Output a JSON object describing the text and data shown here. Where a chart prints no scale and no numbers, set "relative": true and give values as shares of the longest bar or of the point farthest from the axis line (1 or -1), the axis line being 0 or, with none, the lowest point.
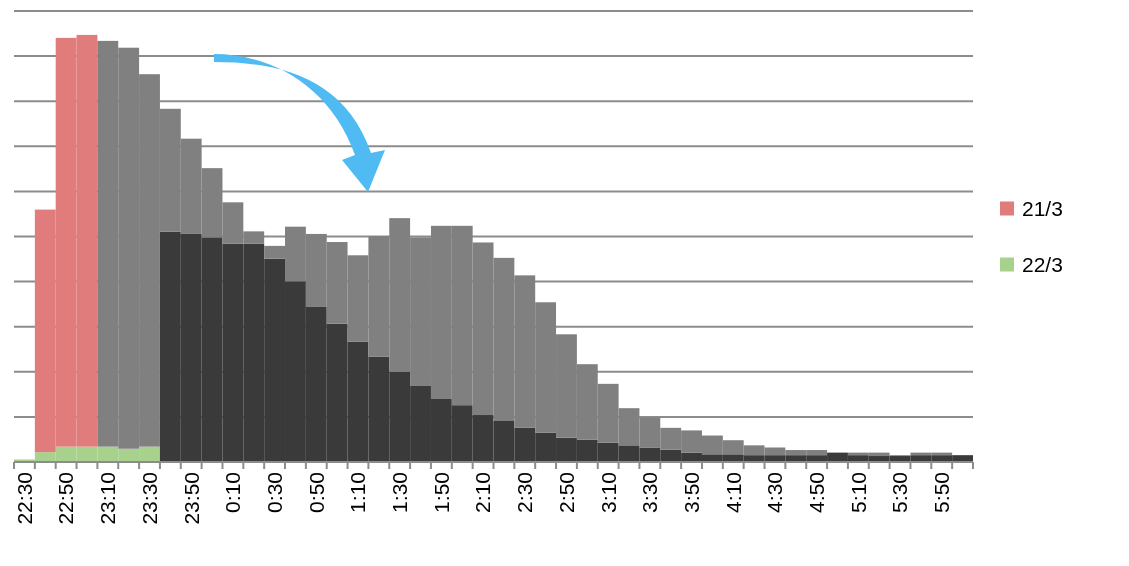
{
  "chart_data": {
    "type": "bar",
    "relative": true,
    "stacked": true,
    "categories": [
      "22:30",
      null,
      "22:50",
      null,
      "23:10",
      null,
      "23:30",
      null,
      "23:50",
      null,
      "0:10",
      null,
      "0:30",
      null,
      "0:50",
      null,
      "1:10",
      null,
      "1:30",
      null,
      "1:50",
      null,
      "2:10",
      null,
      "2:30",
      null,
      "2:50",
      null,
      "3:10",
      null,
      "3:30",
      null,
      "3:50",
      null,
      "4:10",
      null,
      "4:30",
      null,
      "4:50",
      null,
      "5:10",
      null,
      "5:30",
      null,
      "5:50",
      null
    ],
    "series": [
      {
        "name": "22/3",
        "color": "#a9d18e",
        "values": [
          0.006,
          0.023,
          0.036,
          0.036,
          0.036,
          0.031,
          0.036,
          null,
          null,
          null,
          null,
          null,
          null,
          null,
          null,
          null,
          null,
          null,
          null,
          null,
          null,
          null,
          null,
          null,
          null,
          null,
          null,
          null,
          null,
          null,
          null,
          null,
          null,
          null,
          null,
          null,
          null,
          null,
          null,
          null,
          null,
          null,
          null,
          null,
          null,
          null
        ]
      },
      {
        "color": "#3a3a3a",
        "values": [
          null,
          null,
          null,
          null,
          null,
          null,
          null,
          0.539,
          0.534,
          0.526,
          0.511,
          0.511,
          0.476,
          0.423,
          0.363,
          0.324,
          0.282,
          0.247,
          0.211,
          0.178,
          0.149,
          0.133,
          0.11,
          0.096,
          0.08,
          0.069,
          0.057,
          0.052,
          0.045,
          0.039,
          0.034,
          0.029,
          0.022,
          0.018,
          0.018,
          0.016,
          0.016,
          0.016,
          0.016,
          0.022,
          0.016,
          0.014,
          0.014,
          0.016,
          0.016,
          0.016
        ]
      },
      {
        "name": "21/3",
        "color": "#e17c7c",
        "values": [
          null,
          0.568,
          0.957,
          0.964,
          null,
          null,
          null,
          null,
          null,
          null,
          null,
          null,
          null,
          null,
          null,
          null,
          null,
          null,
          null,
          null,
          null,
          null,
          null,
          null,
          null,
          null,
          null,
          null,
          null,
          null,
          null,
          null,
          null,
          null,
          null,
          null,
          null,
          null,
          null,
          null,
          null,
          null,
          null,
          null,
          null,
          null
        ]
      },
      {
        "color": "#808080",
        "values": [
          null,
          null,
          null,
          null,
          0.95,
          0.939,
          0.872,
          0.288,
          0.223,
          0.162,
          0.097,
          0.029,
          0.03,
          0.128,
          0.171,
          0.191,
          0.202,
          0.282,
          0.36,
          0.348,
          0.404,
          0.42,
          0.404,
          0.382,
          0.357,
          0.305,
          0.242,
          0.177,
          0.138,
          0.087,
          0.07,
          0.051,
          0.052,
          0.044,
          0.033,
          0.023,
          0.018,
          0.012,
          0.012,
          null,
          0.006,
          0.008,
          0.002,
          0.006,
          0.006,
          null
        ]
      }
    ],
    "tick_labels": "x",
    "grid": "y",
    "legend": "right"
  }
}
